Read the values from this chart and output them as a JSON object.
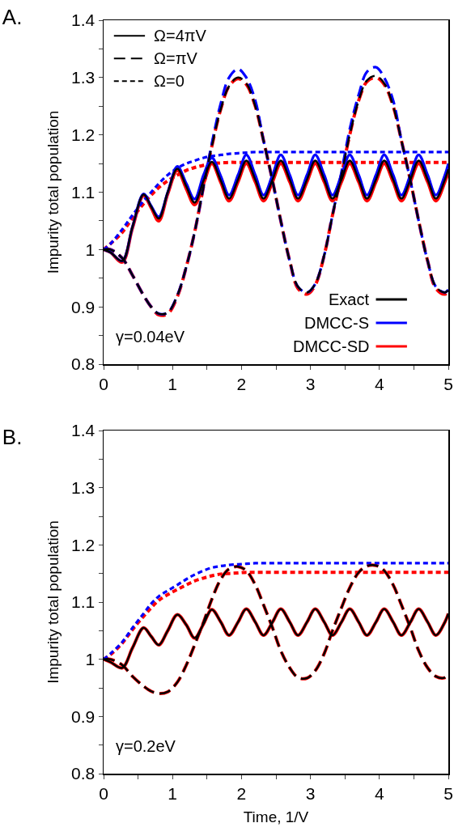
{
  "chart_data": [
    {
      "type": "line",
      "title": "A.",
      "ylabel": "Impurity total population",
      "grid": false,
      "annotations": [
        "Ω=4πV",
        "Ω=πV",
        "Ω=0",
        "Exact",
        "DMCC-S",
        "DMCC-SD",
        "γ=0.04eV"
      ],
      "xlim": [
        0,
        5
      ],
      "xticks": [
        0,
        {
          "value": 0.5,
          "label": null
        },
        1,
        {
          "value": 1.5,
          "label": null
        },
        2,
        {
          "value": 2.5,
          "label": null
        },
        3,
        {
          "value": 3.5,
          "label": null
        },
        4,
        {
          "value": 4.5,
          "label": null
        },
        5
      ],
      "ylim": [
        0.8,
        1.4
      ],
      "yticks": [
        0.8,
        {
          "value": 0.85,
          "label": null
        },
        0.9,
        {
          "value": 0.95,
          "label": null
        },
        1,
        {
          "value": 1.05,
          "label": null
        },
        1.1,
        {
          "value": 1.15,
          "label": null
        },
        1.2,
        {
          "value": 1.25,
          "label": null
        },
        1.3,
        {
          "value": 1.35,
          "label": null
        },
        1.4
      ],
      "x": [
        0,
        0.1,
        0.27,
        0.42,
        0.58,
        0.69,
        0.8,
        0.93,
        1.07,
        1.2,
        1.32,
        1.45,
        1.57,
        1.7,
        1.82,
        1.95,
        2.07,
        2.2,
        2.32,
        2.45,
        2.57,
        2.7,
        2.82,
        2.95,
        3.07,
        3.2,
        3.32,
        3.45,
        3.57,
        3.7,
        3.82,
        3.95,
        4.07,
        4.2,
        4.32,
        4.45,
        4.57,
        4.7,
        4.82,
        4.95,
        5.0
      ],
      "series": [
        {
          "color": "#000000",
          "line_style": "solid",
          "values": [
            1.0,
            0.995,
            0.98,
            1.04,
            1.096,
            1.075,
            1.054,
            1.1,
            1.141,
            1.11,
            1.082,
            1.12,
            1.153,
            1.12,
            1.089,
            1.122,
            1.155,
            1.122,
            1.089,
            1.122,
            1.155,
            1.122,
            1.089,
            1.122,
            1.155,
            1.122,
            1.089,
            1.122,
            1.155,
            1.122,
            1.089,
            1.122,
            1.155,
            1.122,
            1.089,
            1.122,
            1.155,
            1.122,
            1.089,
            1.122,
            1.14
          ]
        },
        {
          "color": "#000000",
          "line_style": "dashed",
          "values": [
            1.0,
            1.0,
            0.985,
            0.955,
            0.92,
            0.9,
            0.888,
            0.89,
            0.92,
            0.97,
            1.03,
            1.11,
            1.18,
            1.245,
            1.285,
            1.3,
            1.29,
            1.25,
            1.19,
            1.12,
            1.05,
            0.98,
            0.935,
            0.925,
            0.94,
            0.99,
            1.06,
            1.13,
            1.2,
            1.26,
            1.295,
            1.303,
            1.29,
            1.25,
            1.19,
            1.12,
            1.05,
            0.98,
            0.935,
            0.925,
            0.93
          ]
        },
        {
          "color": "#0000ff",
          "line_style": "solid",
          "values": [
            1.0,
            0.995,
            0.98,
            1.04,
            1.097,
            1.076,
            1.057,
            1.1,
            1.145,
            1.115,
            1.088,
            1.13,
            1.16,
            1.128,
            1.095,
            1.13,
            1.165,
            1.13,
            1.095,
            1.13,
            1.165,
            1.13,
            1.095,
            1.13,
            1.165,
            1.13,
            1.095,
            1.13,
            1.165,
            1.13,
            1.095,
            1.13,
            1.165,
            1.13,
            1.095,
            1.13,
            1.165,
            1.13,
            1.095,
            1.13,
            1.15
          ]
        },
        {
          "color": "#0000ff",
          "line_style": "dashed",
          "values": [
            1.0,
            1.0,
            0.985,
            0.955,
            0.92,
            0.9,
            0.888,
            0.89,
            0.92,
            0.97,
            1.03,
            1.11,
            1.185,
            1.255,
            1.3,
            1.315,
            1.3,
            1.26,
            1.19,
            1.12,
            1.05,
            0.98,
            0.935,
            0.925,
            0.94,
            0.99,
            1.06,
            1.135,
            1.21,
            1.27,
            1.31,
            1.318,
            1.3,
            1.26,
            1.19,
            1.12,
            1.05,
            0.98,
            0.935,
            0.925,
            0.93
          ]
        },
        {
          "color": "#0000ff",
          "line_style": "dotted",
          "values": [
            1.0,
            1.01,
            1.035,
            1.06,
            1.085,
            1.1,
            1.115,
            1.13,
            1.142,
            1.15,
            1.155,
            1.16,
            1.163,
            1.165,
            1.167,
            1.168,
            1.169,
            1.17,
            1.17,
            1.17,
            1.17,
            1.17,
            1.17,
            1.17,
            1.17,
            1.17,
            1.17,
            1.17,
            1.17,
            1.17,
            1.17,
            1.17,
            1.17,
            1.17,
            1.17,
            1.17,
            1.17,
            1.17,
            1.17,
            1.17,
            1.17
          ]
        },
        {
          "color": "#ff0000",
          "line_style": "solid",
          "values": [
            1.0,
            0.995,
            0.978,
            1.038,
            1.094,
            1.073,
            1.05,
            1.097,
            1.138,
            1.106,
            1.078,
            1.115,
            1.15,
            1.117,
            1.085,
            1.118,
            1.15,
            1.118,
            1.085,
            1.118,
            1.15,
            1.118,
            1.085,
            1.118,
            1.15,
            1.118,
            1.085,
            1.118,
            1.15,
            1.118,
            1.085,
            1.118,
            1.15,
            1.118,
            1.085,
            1.118,
            1.15,
            1.118,
            1.085,
            1.118,
            1.135
          ]
        },
        {
          "color": "#ff0000",
          "line_style": "dashed",
          "values": [
            1.0,
            1.0,
            0.985,
            0.955,
            0.92,
            0.9,
            0.886,
            0.888,
            0.918,
            0.97,
            1.03,
            1.11,
            1.18,
            1.245,
            1.285,
            1.298,
            1.288,
            1.25,
            1.19,
            1.12,
            1.05,
            0.98,
            0.932,
            0.922,
            0.938,
            0.99,
            1.06,
            1.13,
            1.2,
            1.26,
            1.293,
            1.3,
            1.288,
            1.25,
            1.19,
            1.12,
            1.05,
            0.98,
            0.932,
            0.922,
            0.928
          ]
        },
        {
          "color": "#ff0000",
          "line_style": "dotted",
          "values": [
            1.0,
            1.01,
            1.03,
            1.055,
            1.08,
            1.095,
            1.108,
            1.12,
            1.13,
            1.138,
            1.143,
            1.147,
            1.15,
            1.151,
            1.152,
            1.152,
            1.152,
            1.152,
            1.152,
            1.152,
            1.152,
            1.152,
            1.152,
            1.152,
            1.152,
            1.152,
            1.152,
            1.152,
            1.152,
            1.152,
            1.152,
            1.152,
            1.152,
            1.152,
            1.152,
            1.152,
            1.152,
            1.152,
            1.152,
            1.152,
            1.152
          ]
        }
      ]
    },
    {
      "type": "line",
      "title": "B.",
      "ylabel": "Impurity total population",
      "xlabel": "Time, 1/V",
      "grid": false,
      "annotations": [
        "γ=0.2eV"
      ],
      "xlim": [
        0,
        5
      ],
      "xticks": [
        0,
        {
          "value": 0.5,
          "label": null
        },
        1,
        {
          "value": 1.5,
          "label": null
        },
        2,
        {
          "value": 2.5,
          "label": null
        },
        3,
        {
          "value": 3.5,
          "label": null
        },
        4,
        {
          "value": 4.5,
          "label": null
        },
        5
      ],
      "ylim": [
        0.8,
        1.4
      ],
      "yticks": [
        0.8,
        {
          "value": 0.85,
          "label": null
        },
        0.9,
        {
          "value": 0.95,
          "label": null
        },
        1,
        {
          "value": 1.05,
          "label": null
        },
        1.1,
        {
          "value": 1.15,
          "label": null
        },
        1.2,
        {
          "value": 1.25,
          "label": null
        },
        1.3,
        {
          "value": 1.35,
          "label": null
        },
        1.4
      ],
      "x": [
        0,
        0.1,
        0.27,
        0.42,
        0.58,
        0.69,
        0.8,
        0.93,
        1.07,
        1.2,
        1.32,
        1.45,
        1.57,
        1.7,
        1.82,
        1.95,
        2.07,
        2.2,
        2.32,
        2.45,
        2.57,
        2.7,
        2.82,
        2.95,
        3.07,
        3.2,
        3.32,
        3.45,
        3.57,
        3.7,
        3.82,
        3.95,
        4.07,
        4.2,
        4.32,
        4.45,
        4.57,
        4.7,
        4.82,
        4.95,
        5.0
      ],
      "series": [
        {
          "color": "#000000",
          "line_style": "solid",
          "values": [
            1.0,
            0.995,
            0.985,
            1.02,
            1.055,
            1.04,
            1.025,
            1.05,
            1.078,
            1.06,
            1.037,
            1.062,
            1.087,
            1.065,
            1.042,
            1.065,
            1.088,
            1.065,
            1.042,
            1.065,
            1.088,
            1.065,
            1.042,
            1.065,
            1.088,
            1.065,
            1.042,
            1.065,
            1.088,
            1.065,
            1.042,
            1.065,
            1.088,
            1.065,
            1.042,
            1.065,
            1.088,
            1.065,
            1.042,
            1.065,
            1.08
          ]
        },
        {
          "color": "#000000",
          "line_style": "dashed",
          "values": [
            1.0,
            1.0,
            0.99,
            0.97,
            0.953,
            0.944,
            0.94,
            0.943,
            0.96,
            0.99,
            1.025,
            1.065,
            1.105,
            1.14,
            1.158,
            1.162,
            1.155,
            1.13,
            1.095,
            1.055,
            1.015,
            0.985,
            0.968,
            0.967,
            0.98,
            1.01,
            1.05,
            1.09,
            1.125,
            1.152,
            1.163,
            1.164,
            1.155,
            1.13,
            1.095,
            1.055,
            1.015,
            0.985,
            0.97,
            0.968,
            0.975
          ]
        },
        {
          "color": "#0000ff",
          "line_style": "dotted",
          "values": [
            1.0,
            1.01,
            1.03,
            1.055,
            1.08,
            1.097,
            1.11,
            1.12,
            1.13,
            1.14,
            1.148,
            1.155,
            1.16,
            1.163,
            1.165,
            1.166,
            1.167,
            1.168,
            1.168,
            1.168,
            1.168,
            1.168,
            1.168,
            1.168,
            1.168,
            1.168,
            1.168,
            1.168,
            1.168,
            1.168,
            1.168,
            1.168,
            1.168,
            1.168,
            1.168,
            1.168,
            1.168,
            1.168,
            1.168,
            1.168,
            1.168
          ]
        },
        {
          "color": "#ff0000",
          "line_style": "solid",
          "values": [
            1.0,
            0.995,
            0.985,
            1.02,
            1.055,
            1.04,
            1.025,
            1.05,
            1.078,
            1.06,
            1.037,
            1.062,
            1.087,
            1.065,
            1.042,
            1.065,
            1.088,
            1.065,
            1.042,
            1.065,
            1.088,
            1.065,
            1.042,
            1.065,
            1.088,
            1.065,
            1.042,
            1.065,
            1.088,
            1.065,
            1.042,
            1.065,
            1.088,
            1.065,
            1.042,
            1.065,
            1.088,
            1.065,
            1.042,
            1.065,
            1.08
          ]
        },
        {
          "color": "#ff0000",
          "line_style": "dashed",
          "values": [
            1.0,
            1.0,
            0.99,
            0.97,
            0.953,
            0.944,
            0.94,
            0.943,
            0.96,
            0.99,
            1.025,
            1.065,
            1.105,
            1.14,
            1.158,
            1.162,
            1.155,
            1.13,
            1.095,
            1.055,
            1.015,
            0.985,
            0.968,
            0.967,
            0.98,
            1.01,
            1.05,
            1.09,
            1.125,
            1.152,
            1.163,
            1.164,
            1.155,
            1.13,
            1.095,
            1.055,
            1.015,
            0.985,
            0.97,
            0.968,
            0.975
          ]
        },
        {
          "color": "#ff0000",
          "line_style": "dotted",
          "values": [
            1.0,
            1.008,
            1.028,
            1.052,
            1.075,
            1.09,
            1.103,
            1.113,
            1.122,
            1.13,
            1.137,
            1.142,
            1.146,
            1.149,
            1.15,
            1.151,
            1.152,
            1.152,
            1.152,
            1.152,
            1.152,
            1.152,
            1.152,
            1.152,
            1.152,
            1.152,
            1.152,
            1.152,
            1.152,
            1.152,
            1.152,
            1.152,
            1.152,
            1.152,
            1.152,
            1.152,
            1.152,
            1.152,
            1.152,
            1.152,
            1.152
          ]
        }
      ]
    }
  ]
}
